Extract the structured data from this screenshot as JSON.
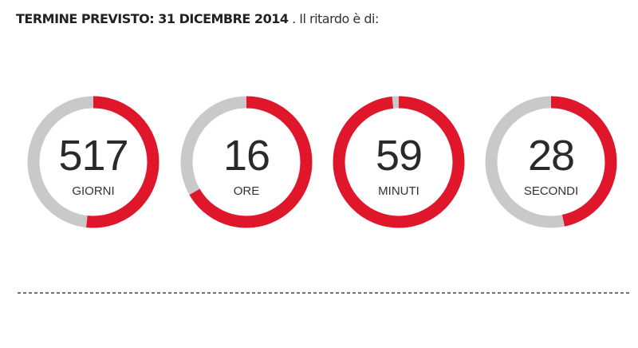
{
  "header": {
    "label": "TERMINE PREVISTO: 31 DICEMBRE 2014",
    "suffix": ". Il ritardo è di:"
  },
  "ring_color": "#e0162b",
  "track_color": "#c9c9c9",
  "counters": [
    {
      "value": 517,
      "label": "GIORNI",
      "max": 1000
    },
    {
      "value": 16,
      "label": "ORE",
      "max": 24
    },
    {
      "value": 59,
      "label": "MINUTI",
      "max": 60
    },
    {
      "value": 28,
      "label": "SECONDI",
      "max": 60
    }
  ]
}
